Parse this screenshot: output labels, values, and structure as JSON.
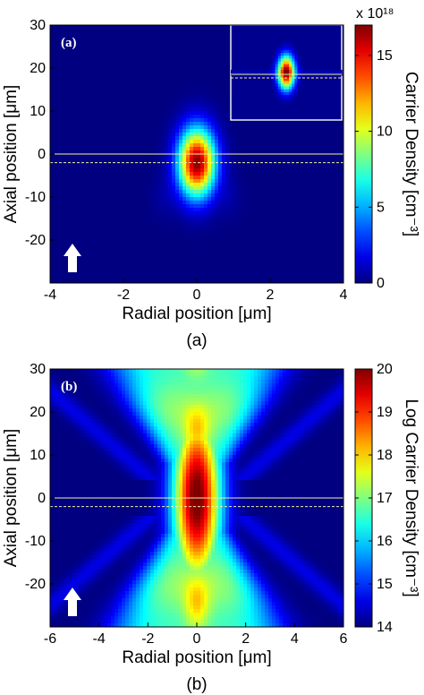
{
  "chart_data": [
    {
      "type": "heatmap",
      "panel_label": "(a)",
      "caption": "(a)",
      "xlabel": "Radial position [μm]",
      "ylabel": "Axial position [μm]",
      "xlim": [
        -4,
        4
      ],
      "ylim": [
        -30,
        30
      ],
      "xticks": [
        -4,
        -2,
        0,
        2,
        4
      ],
      "yticks": [
        -20,
        -10,
        0,
        10,
        20,
        30
      ],
      "colorbar": {
        "label": "Carrier Density [cm⁻³]",
        "range": [
          0,
          17
        ],
        "ticks": [
          0,
          5,
          10,
          15
        ],
        "multiplier": "x 10¹⁸",
        "colormap": "jet"
      },
      "peak": {
        "x": 0,
        "y": -2,
        "value": 17,
        "sigma_x": 0.35,
        "sigma_y": 5.5
      },
      "reference_lines_y": [
        0,
        -2
      ],
      "has_inset": true,
      "has_arrow": true
    },
    {
      "type": "heatmap",
      "panel_label": "(b)",
      "caption": "(b)",
      "xlabel": "Radial position [μm]",
      "ylabel": "Axial position [μm]",
      "xlim": [
        -6,
        6
      ],
      "ylim": [
        -30,
        30
      ],
      "xticks": [
        -6,
        -4,
        -2,
        0,
        2,
        4,
        6
      ],
      "yticks": [
        -20,
        -10,
        0,
        10,
        20,
        30
      ],
      "colorbar": {
        "label": "Log Carrier Density [cm⁻³]",
        "range": [
          14,
          20
        ],
        "ticks": [
          14,
          15,
          16,
          17,
          18,
          19,
          20
        ],
        "colormap": "jet"
      },
      "peak": {
        "x": 0,
        "y": 0,
        "value": 20
      },
      "reference_lines_y": [
        0,
        -2
      ],
      "has_arrow": true
    }
  ],
  "colors": {
    "colormap_stops": [
      "#00008f",
      "#0000ff",
      "#00ffff",
      "#ffff00",
      "#ff0000",
      "#800000"
    ],
    "reference_line": "#f2f2a0",
    "arrow": "#ffffff"
  }
}
